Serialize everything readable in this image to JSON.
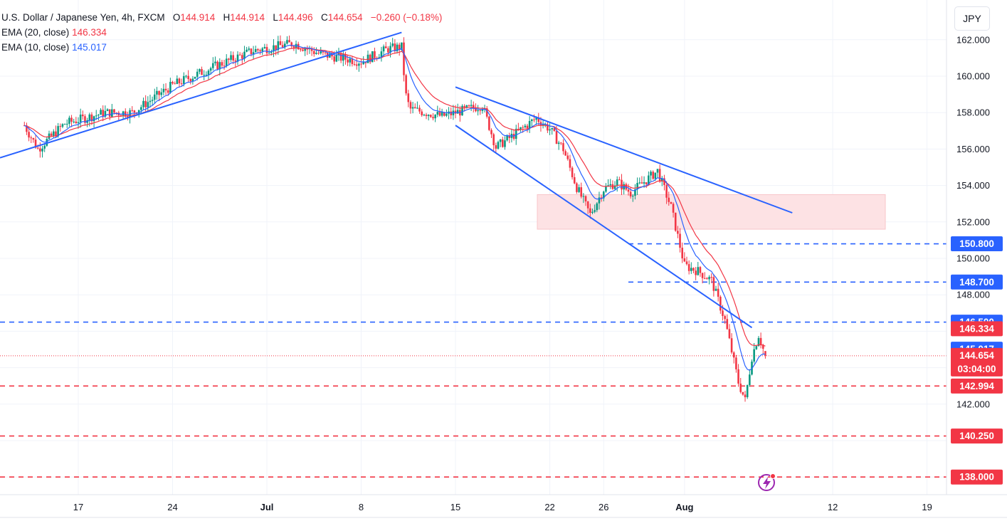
{
  "header": {
    "symbol": "U.S. Dollar / Japanese Yen, 4h, FXCM",
    "o_label": "O",
    "o_value": "144.914",
    "h_label": "H",
    "h_value": "144.914",
    "l_label": "L",
    "l_value": "144.496",
    "c_label": "C",
    "c_value": "144.654",
    "change": "−0.260 (−0.18%)",
    "ema20_label": "EMA (20, close)",
    "ema20_value": "146.334",
    "ema10_label": "EMA (10, close)",
    "ema10_value": "145.017",
    "currency": "JPY"
  },
  "colors": {
    "up": "#089981",
    "down": "#f23645",
    "ema20": "#f23645",
    "ema10": "#2962ff",
    "trendline": "#2962ff",
    "zone": "#fde2e4",
    "grid": "#f0f3fa"
  },
  "chart_data": {
    "type": "candlestick",
    "title": "U.S. Dollar / Japanese Yen, 4h, FXCM",
    "y_ticks": [
      "162.000",
      "160.000",
      "158.000",
      "156.000",
      "154.000",
      "152.000",
      "150.000",
      "148.000",
      "142.000"
    ],
    "x_ticks": [
      "17",
      "24",
      "Jul",
      "8",
      "15",
      "22",
      "26",
      "Aug",
      "12",
      "19"
    ],
    "last": {
      "open": 144.914,
      "high": 144.914,
      "low": 144.496,
      "close": 144.654,
      "change": -0.26,
      "change_pct": -0.18,
      "countdown": "03:04:00"
    },
    "ema20_last": 146.334,
    "ema10_last": 145.017,
    "price_labels": [
      {
        "value": "150.800",
        "price": 150.8,
        "style": "dashed",
        "color": "#2962ff"
      },
      {
        "value": "148.700",
        "price": 148.7,
        "style": "dashed",
        "color": "#2962ff"
      },
      {
        "value": "146.500",
        "price": 146.5,
        "style": "dashed",
        "color": "#2962ff"
      },
      {
        "value": "146.334",
        "price": 146.334,
        "style": "ema",
        "color": "#f23645"
      },
      {
        "value": "145.017",
        "price": 145.017,
        "style": "ema",
        "color": "#2962ff"
      },
      {
        "value": "144.654",
        "price": 144.654,
        "style": "last",
        "color": "#f23645"
      },
      {
        "value": "142.994",
        "price": 142.994,
        "style": "dashed",
        "color": "#f23645"
      },
      {
        "value": "140.250",
        "price": 140.25,
        "style": "dashed",
        "color": "#f23645"
      },
      {
        "value": "138.000",
        "price": 138.0,
        "style": "dashed",
        "color": "#f23645"
      }
    ],
    "resistance_zone": {
      "from": 151.6,
      "to": 153.5
    },
    "trendlines": [
      {
        "name": "rising support",
        "p1": [
          "Jun 13",
          155.6
        ],
        "p2": [
          "Jul 11",
          162.4
        ]
      },
      {
        "name": "falling resistance",
        "p1": [
          "Jul 15",
          159.4
        ],
        "p2": [
          "Aug 9",
          152.5
        ]
      },
      {
        "name": "falling support",
        "p1": [
          "Jul 15",
          157.3
        ],
        "p2": [
          "Aug 6",
          146.2
        ]
      }
    ],
    "price_path": [
      {
        "d": "Jun 13",
        "p": 157.3
      },
      {
        "d": "Jun 14",
        "p": 156.0
      },
      {
        "d": "Jun 16",
        "p": 157.4
      },
      {
        "d": "Jun 19",
        "p": 158.0
      },
      {
        "d": "Jun 21",
        "p": 158.0
      },
      {
        "d": "Jun 24",
        "p": 159.5
      },
      {
        "d": "Jun 27",
        "p": 160.5
      },
      {
        "d": "Jun 30",
        "p": 161.4
      },
      {
        "d": "Jul 3",
        "p": 161.8
      },
      {
        "d": "Jul 5",
        "p": 161.2
      },
      {
        "d": "Jul 8",
        "p": 160.8
      },
      {
        "d": "Jul 10",
        "p": 161.5
      },
      {
        "d": "Jul 11",
        "p": 161.6
      },
      {
        "d": "Jul 11.3",
        "p": 159.0
      },
      {
        "d": "Jul 11.6",
        "p": 158.2
      },
      {
        "d": "Jul 14",
        "p": 157.8
      },
      {
        "d": "Jul 16",
        "p": 158.2
      },
      {
        "d": "Jul 17",
        "p": 158.4
      },
      {
        "d": "Jul 18",
        "p": 156.1
      },
      {
        "d": "Jul 19",
        "p": 156.6
      },
      {
        "d": "Jul 21",
        "p": 157.7
      },
      {
        "d": "Jul 22",
        "p": 157.1
      },
      {
        "d": "Jul 23",
        "p": 156.0
      },
      {
        "d": "Jul 24",
        "p": 153.9
      },
      {
        "d": "Jul 25",
        "p": 152.4
      },
      {
        "d": "Jul 26",
        "p": 153.8
      },
      {
        "d": "Jul 27",
        "p": 154.2
      },
      {
        "d": "Jul 28",
        "p": 153.6
      },
      {
        "d": "Jul 30",
        "p": 154.8
      },
      {
        "d": "Jul 31",
        "p": 152.8
      },
      {
        "d": "Aug 1",
        "p": 149.6
      },
      {
        "d": "Aug 2",
        "p": 149.3
      },
      {
        "d": "Aug 3",
        "p": 148.8
      },
      {
        "d": "Aug 4",
        "p": 146.6
      },
      {
        "d": "Aug 5",
        "p": 143.2
      },
      {
        "d": "Aug 5.5",
        "p": 142.2
      },
      {
        "d": "Aug 6",
        "p": 144.6
      },
      {
        "d": "Aug 6.5",
        "p": 145.8
      },
      {
        "d": "Aug 7",
        "p": 144.65
      }
    ]
  }
}
